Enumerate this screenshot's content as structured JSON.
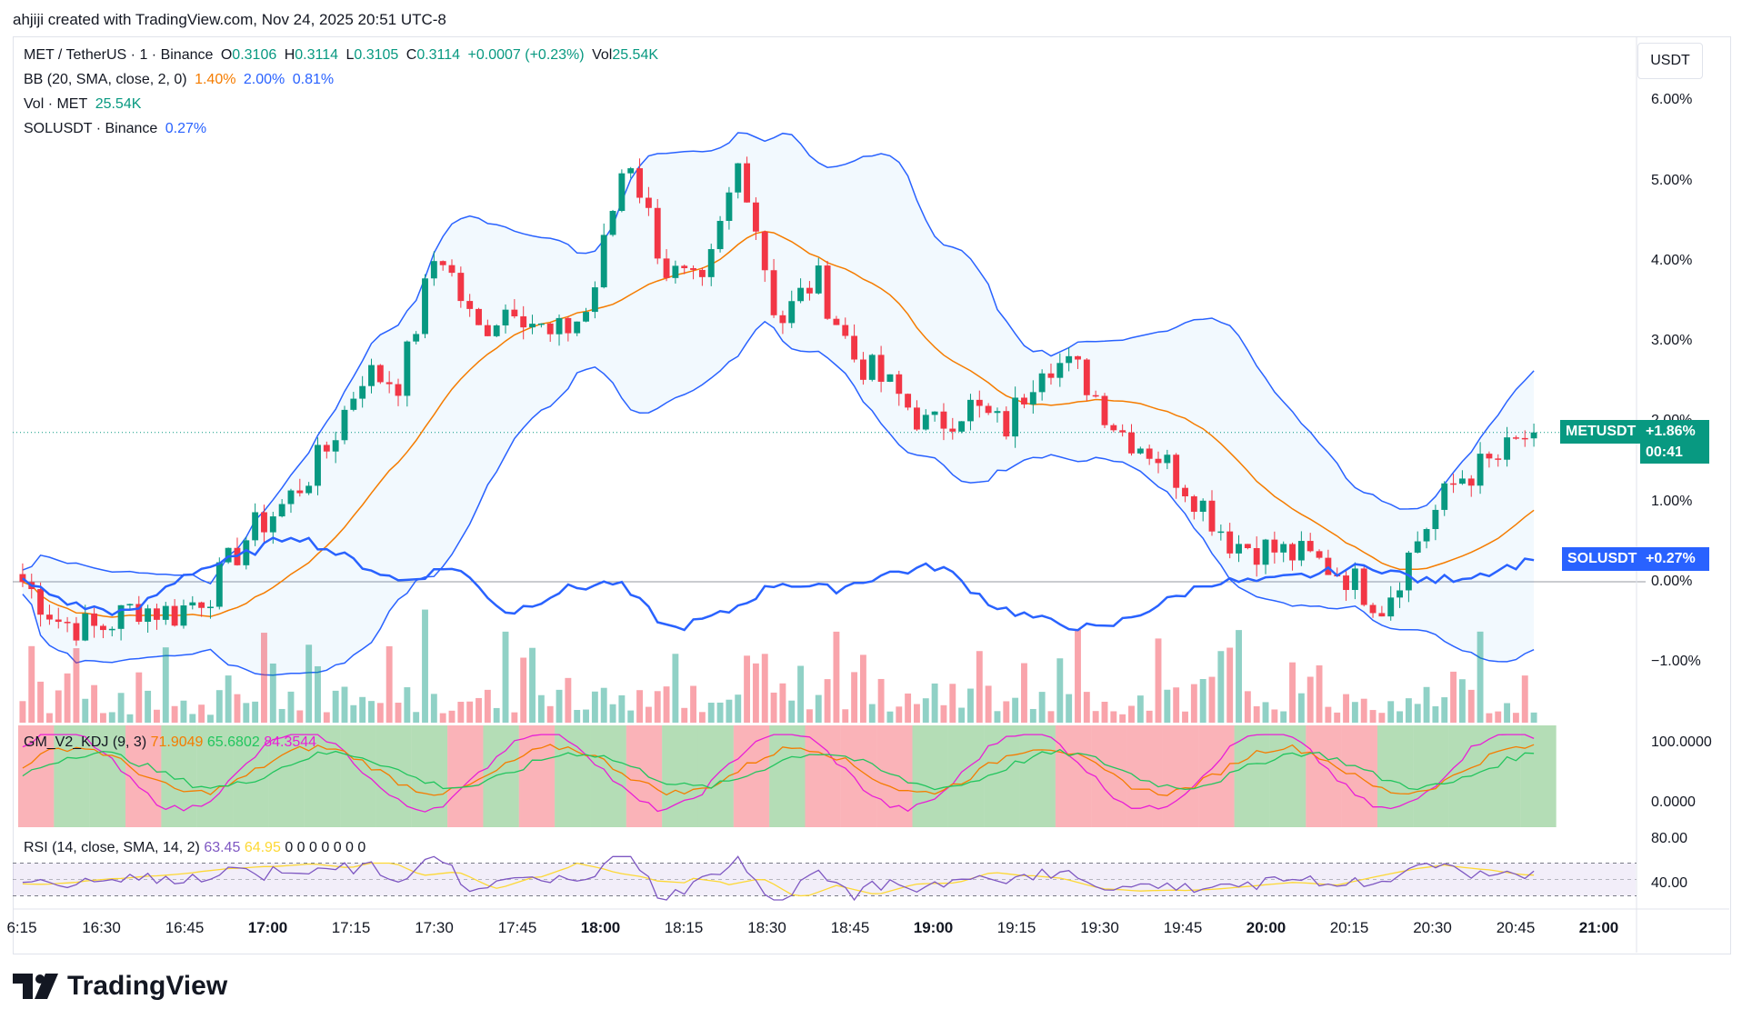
{
  "header": {
    "creator_line": "ahjiji created with TradingView.com, Nov 24, 2025 20:51 UTC-8"
  },
  "legend": {
    "symbol": "MET / TetherUS · 1 · Binance",
    "o_label": "O",
    "o_val": "0.3106",
    "h_label": "H",
    "h_val": "0.3114",
    "l_label": "L",
    "l_val": "0.3105",
    "c_label": "C",
    "c_val": "0.3114",
    "change": "+0.0007 (+0.23%)",
    "vol_label": "Vol",
    "vol_val": "25.54K",
    "bb_name": "BB (20, SMA, close, 2, 0)",
    "bb_basis": "1.40%",
    "bb_upper": "2.00%",
    "bb_lower": "0.81%",
    "vol_name": "Vol · MET",
    "vol_ind_val": "25.54K",
    "cmp_name": "SOLUSDT · Binance",
    "cmp_val": "0.27%"
  },
  "currency_button": "USDT",
  "price_tags": {
    "met_symbol": "METUSDT",
    "met_change": "+1.86%",
    "met_countdown": "00:41",
    "sol_symbol": "SOLUSDT",
    "sol_change": "+0.27%"
  },
  "indicators": {
    "kdj_name": "GM_V2_KDJ (9, 3)",
    "kdj_k": "71.9049",
    "kdj_d": "65.6802",
    "kdj_j": "84.3544",
    "rsi_name": "RSI (14, close, SMA, 14, 2)",
    "rsi_val": "63.45",
    "rsi_ma": "64.95",
    "rsi_zeros": "0 0 0 0 0 0 0",
    "kdj_axis": [
      "100.0000",
      "0.0000"
    ],
    "rsi_axis": [
      "80.00",
      "40.00"
    ]
  },
  "branding": {
    "logo_text": "TradingView"
  },
  "colors": {
    "up": "#089981",
    "down": "#f23645",
    "bb_line": "#2962ff",
    "basis": "#f57c00",
    "sol": "#2962ff"
  },
  "chart_data": {
    "type": "candlestick",
    "title": "MET / TetherUS · 1 · Binance",
    "y_unit": "%",
    "yticks": [
      "6.00%",
      "5.00%",
      "4.00%",
      "3.00%",
      "2.00%",
      "1.00%",
      "0.00%",
      "−1.00%"
    ],
    "xticks": [
      "6:15",
      "16:30",
      "16:45",
      "17:00",
      "17:15",
      "17:30",
      "17:45",
      "18:00",
      "18:15",
      "18:30",
      "18:45",
      "19:00",
      "19:15",
      "19:30",
      "19:45",
      "20:00",
      "20:15",
      "20:30",
      "20:45",
      "21:00"
    ],
    "bold_xticks": [
      "17:00",
      "18:00",
      "19:00",
      "20:00",
      "21:00"
    ],
    "ylim": [
      -1.4,
      6.3
    ],
    "met_last_change_pct": 1.86,
    "sol_last_change_pct": 0.27,
    "met_close_path_pct": [
      0.0,
      -0.5,
      -0.6,
      -0.3,
      -0.4,
      -0.1,
      0.6,
      1.0,
      1.6,
      2.6,
      2.5,
      4.2,
      3.1,
      3.5,
      3.0,
      3.4,
      5.4,
      3.9,
      3.6,
      5.3,
      3.2,
      3.8,
      2.8,
      2.4,
      1.9,
      2.2,
      1.9,
      2.8,
      2.6,
      1.9,
      1.6,
      1.1,
      0.5,
      0.4,
      0.3,
      0.1,
      -0.3,
      0.6,
      1.3,
      1.5,
      1.9
    ],
    "sol_path_pct": [
      0.0,
      -0.3,
      -0.4,
      0.1,
      0.3,
      0.6,
      0.3,
      0.0,
      0.2,
      -0.4,
      -0.1,
      0.0,
      -0.6,
      -0.4,
      0.0,
      -0.1,
      0.1,
      0.2,
      -0.3,
      -0.5,
      -0.6,
      -0.3,
      0.0,
      0.0,
      0.1,
      0.2,
      0.0,
      0.1,
      0.27
    ]
  }
}
